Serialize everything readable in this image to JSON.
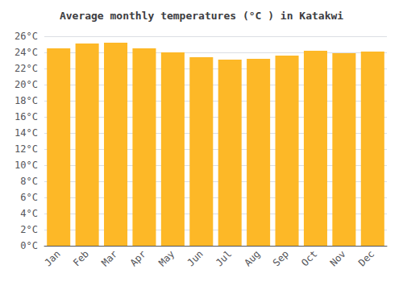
{
  "chart_data": {
    "type": "bar",
    "title": "Average monthly temperatures (°C ) in Katakwi",
    "categories": [
      "Jan",
      "Feb",
      "Mar",
      "Apr",
      "May",
      "Jun",
      "Jul",
      "Aug",
      "Sep",
      "Oct",
      "Nov",
      "Dec"
    ],
    "values": [
      24.5,
      25.1,
      25.2,
      24.5,
      24.0,
      23.4,
      23.1,
      23.2,
      23.6,
      24.2,
      23.9,
      24.1
    ],
    "color": "#FDB827",
    "ylim": [
      0,
      26
    ],
    "yticks": [
      {
        "value": 0,
        "label": "0°C"
      },
      {
        "value": 2,
        "label": "2°C"
      },
      {
        "value": 4,
        "label": "4°C"
      },
      {
        "value": 6,
        "label": "6°C"
      },
      {
        "value": 8,
        "label": "8°C"
      },
      {
        "value": 10,
        "label": "10°C"
      },
      {
        "value": 12,
        "label": "12°C"
      },
      {
        "value": 14,
        "label": "14°C"
      },
      {
        "value": 16,
        "label": "16°C"
      },
      {
        "value": 18,
        "label": "18°C"
      },
      {
        "value": 20,
        "label": "20°C"
      },
      {
        "value": 22,
        "label": "22°C"
      },
      {
        "value": 24,
        "label": "24°C"
      },
      {
        "value": 26,
        "label": "26°C"
      }
    ],
    "grid": true
  }
}
